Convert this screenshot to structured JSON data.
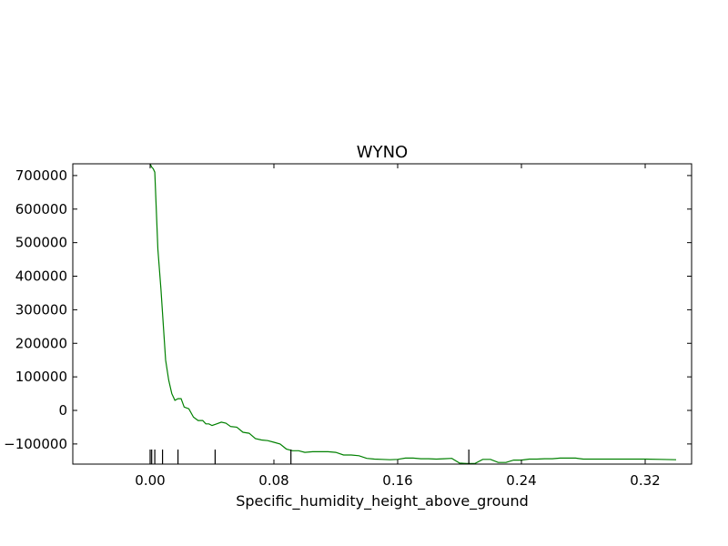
{
  "chart_data": {
    "type": "line",
    "title": "WYNO",
    "xlabel": "Specific_humidity_height_above_ground",
    "ylabel": "",
    "xlim": [
      -0.05,
      0.35
    ],
    "ylim": [
      -160000,
      735000
    ],
    "grid": false,
    "line_color": "#008000",
    "x_ticks": [
      0.0,
      0.08,
      0.16,
      0.24,
      0.32
    ],
    "x_tick_labels": [
      "0.00",
      "0.08",
      "0.16",
      "0.24",
      "0.32"
    ],
    "y_ticks": [
      700000,
      600000,
      500000,
      400000,
      300000,
      200000,
      100000,
      0,
      -100000
    ],
    "y_tick_labels": [
      "700000",
      "600000",
      "500000",
      "400000",
      "300000",
      "200000",
      "100000",
      "0",
      "−100000"
    ],
    "rug": [
      0.0,
      0.001,
      0.003,
      0.008,
      0.018,
      0.042,
      0.091,
      0.206
    ],
    "series": [
      {
        "x": [
          0.0,
          0.001,
          0.002,
          0.003,
          0.005,
          0.007,
          0.01,
          0.012,
          0.014,
          0.016,
          0.018,
          0.02,
          0.022,
          0.025,
          0.028,
          0.031,
          0.034,
          0.036,
          0.038,
          0.04,
          0.043,
          0.046,
          0.049,
          0.052,
          0.056,
          0.06,
          0.064,
          0.068,
          0.072,
          0.076,
          0.08,
          0.084,
          0.088,
          0.092,
          0.096,
          0.1,
          0.105,
          0.11,
          0.115,
          0.12,
          0.125,
          0.13,
          0.135,
          0.14,
          0.145,
          0.15,
          0.155,
          0.16,
          0.165,
          0.17,
          0.175,
          0.18,
          0.185,
          0.19,
          0.195,
          0.2,
          0.205,
          0.21,
          0.215,
          0.22,
          0.225,
          0.23,
          0.235,
          0.24,
          0.245,
          0.25,
          0.255,
          0.26,
          0.265,
          0.27,
          0.275,
          0.28,
          0.285,
          0.29,
          0.295,
          0.3,
          0.305,
          0.31,
          0.32,
          0.33,
          0.34
        ],
        "y": [
          735000,
          725000,
          720000,
          710000,
          480000,
          360000,
          150000,
          90000,
          50000,
          30000,
          35000,
          35000,
          10000,
          5000,
          -20000,
          -30000,
          -30000,
          -40000,
          -40000,
          -45000,
          -40000,
          -35000,
          -38000,
          -48000,
          -50000,
          -65000,
          -68000,
          -84000,
          -88000,
          -90000,
          -95000,
          -100000,
          -115000,
          -120000,
          -120000,
          -125000,
          -123000,
          -123000,
          -123000,
          -125000,
          -133000,
          -133000,
          -135000,
          -143000,
          -145000,
          -146000,
          -147000,
          -146000,
          -142000,
          -142000,
          -144000,
          -144000,
          -145000,
          -144000,
          -143000,
          -157000,
          -158000,
          -158000,
          -146000,
          -146000,
          -155000,
          -155000,
          -148000,
          -148000,
          -145000,
          -145000,
          -144000,
          -144000,
          -142000,
          -142000,
          -142000,
          -145000,
          -145000,
          -145000,
          -145000,
          -145000,
          -145000,
          -145000,
          -145000,
          -146000,
          -147000
        ]
      }
    ]
  }
}
